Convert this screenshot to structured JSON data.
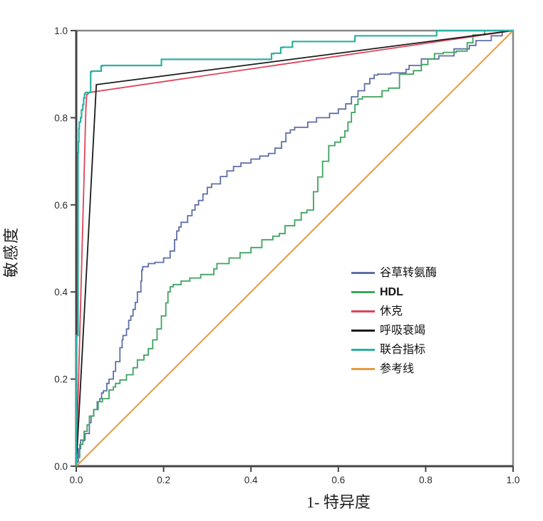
{
  "chart_data": {
    "type": "line",
    "subtype": "roc-curves",
    "title": "",
    "xlabel": "1- 特异度",
    "ylabel": "敏感度",
    "xlim": [
      0,
      1
    ],
    "ylim": [
      0,
      1
    ],
    "grid": false,
    "legend_position": "inside-right",
    "xtick_labels": [
      "0.0",
      "0.2",
      "0.4",
      "0.6",
      "0.8",
      "1.0"
    ],
    "ytick_labels": [
      "0.0",
      "0.2",
      "0.4",
      "0.6",
      "0.8",
      "1.0"
    ],
    "xticks": [
      0.0,
      0.2,
      0.4,
      0.6,
      0.8,
      1.0
    ],
    "yticks": [
      0.0,
      0.2,
      0.4,
      0.6,
      0.8,
      1.0
    ],
    "axis_colors": {
      "frame": "#878787",
      "axis": "#454545",
      "tick_text": "#2b2b2b"
    },
    "series": [
      {
        "id": "ast",
        "name": "谷草转氨酶",
        "color": "#5f6fa6",
        "interp": "step",
        "width": 1.8,
        "points": [
          [
            0,
            0
          ],
          [
            0.005,
            0.01
          ],
          [
            0.01,
            0.04
          ],
          [
            0.02,
            0.06
          ],
          [
            0.03,
            0.075
          ],
          [
            0.034,
            0.1
          ],
          [
            0.04,
            0.115
          ],
          [
            0.048,
            0.13
          ],
          [
            0.054,
            0.148
          ],
          [
            0.058,
            0.155
          ],
          [
            0.062,
            0.168
          ],
          [
            0.07,
            0.173
          ],
          [
            0.075,
            0.19
          ],
          [
            0.085,
            0.2
          ],
          [
            0.09,
            0.218
          ],
          [
            0.1,
            0.24
          ],
          [
            0.105,
            0.272
          ],
          [
            0.107,
            0.29
          ],
          [
            0.115,
            0.3
          ],
          [
            0.12,
            0.315
          ],
          [
            0.125,
            0.335
          ],
          [
            0.13,
            0.345
          ],
          [
            0.135,
            0.36
          ],
          [
            0.14,
            0.376
          ],
          [
            0.148,
            0.4
          ],
          [
            0.15,
            0.425
          ],
          [
            0.152,
            0.45
          ],
          [
            0.165,
            0.458
          ],
          [
            0.18,
            0.465
          ],
          [
            0.2,
            0.468
          ],
          [
            0.215,
            0.478
          ],
          [
            0.225,
            0.494
          ],
          [
            0.23,
            0.52
          ],
          [
            0.235,
            0.54
          ],
          [
            0.24,
            0.549
          ],
          [
            0.255,
            0.56
          ],
          [
            0.265,
            0.575
          ],
          [
            0.272,
            0.588
          ],
          [
            0.28,
            0.6
          ],
          [
            0.29,
            0.61
          ],
          [
            0.3,
            0.625
          ],
          [
            0.31,
            0.64
          ],
          [
            0.33,
            0.648
          ],
          [
            0.345,
            0.665
          ],
          [
            0.36,
            0.678
          ],
          [
            0.377,
            0.688
          ],
          [
            0.4,
            0.696
          ],
          [
            0.42,
            0.705
          ],
          [
            0.44,
            0.712
          ],
          [
            0.455,
            0.718
          ],
          [
            0.47,
            0.73
          ],
          [
            0.48,
            0.745
          ],
          [
            0.49,
            0.765
          ],
          [
            0.5,
            0.772
          ],
          [
            0.53,
            0.778
          ],
          [
            0.55,
            0.79
          ],
          [
            0.58,
            0.8
          ],
          [
            0.6,
            0.81
          ],
          [
            0.617,
            0.82
          ],
          [
            0.63,
            0.832
          ],
          [
            0.645,
            0.848
          ],
          [
            0.66,
            0.862
          ],
          [
            0.672,
            0.878
          ],
          [
            0.682,
            0.89
          ],
          [
            0.69,
            0.898
          ],
          [
            0.72,
            0.9
          ],
          [
            0.755,
            0.903
          ],
          [
            0.762,
            0.911
          ],
          [
            0.79,
            0.92
          ],
          [
            0.83,
            0.935
          ],
          [
            0.865,
            0.942
          ],
          [
            0.9,
            0.958
          ],
          [
            0.915,
            0.966
          ],
          [
            0.95,
            0.977
          ],
          [
            0.975,
            0.988
          ],
          [
            1,
            1
          ]
        ]
      },
      {
        "id": "hdl",
        "name": "HDL",
        "color": "#3ea35f",
        "interp": "step",
        "width": 1.8,
        "points": [
          [
            0,
            0
          ],
          [
            0.008,
            0.02
          ],
          [
            0.015,
            0.05
          ],
          [
            0.018,
            0.058
          ],
          [
            0.025,
            0.08
          ],
          [
            0.03,
            0.095
          ],
          [
            0.04,
            0.115
          ],
          [
            0.05,
            0.13
          ],
          [
            0.06,
            0.148
          ],
          [
            0.075,
            0.155
          ],
          [
            0.085,
            0.175
          ],
          [
            0.09,
            0.182
          ],
          [
            0.1,
            0.19
          ],
          [
            0.115,
            0.198
          ],
          [
            0.13,
            0.21
          ],
          [
            0.14,
            0.226
          ],
          [
            0.155,
            0.244
          ],
          [
            0.165,
            0.255
          ],
          [
            0.175,
            0.27
          ],
          [
            0.185,
            0.29
          ],
          [
            0.195,
            0.315
          ],
          [
            0.205,
            0.345
          ],
          [
            0.21,
            0.375
          ],
          [
            0.215,
            0.4
          ],
          [
            0.222,
            0.412
          ],
          [
            0.24,
            0.417
          ],
          [
            0.26,
            0.425
          ],
          [
            0.285,
            0.432
          ],
          [
            0.315,
            0.44
          ],
          [
            0.322,
            0.453
          ],
          [
            0.35,
            0.465
          ],
          [
            0.375,
            0.478
          ],
          [
            0.4,
            0.49
          ],
          [
            0.425,
            0.502
          ],
          [
            0.45,
            0.52
          ],
          [
            0.465,
            0.528
          ],
          [
            0.478,
            0.534
          ],
          [
            0.5,
            0.552
          ],
          [
            0.515,
            0.565
          ],
          [
            0.528,
            0.582
          ],
          [
            0.543,
            0.588
          ],
          [
            0.553,
            0.63
          ],
          [
            0.564,
            0.664
          ],
          [
            0.578,
            0.7
          ],
          [
            0.592,
            0.736
          ],
          [
            0.605,
            0.744
          ],
          [
            0.615,
            0.755
          ],
          [
            0.622,
            0.77
          ],
          [
            0.63,
            0.79
          ],
          [
            0.638,
            0.812
          ],
          [
            0.645,
            0.83
          ],
          [
            0.655,
            0.843
          ],
          [
            0.7,
            0.848
          ],
          [
            0.715,
            0.862
          ],
          [
            0.74,
            0.868
          ],
          [
            0.772,
            0.9
          ],
          [
            0.79,
            0.908
          ],
          [
            0.805,
            0.922
          ],
          [
            0.82,
            0.935
          ],
          [
            0.84,
            0.947
          ],
          [
            0.87,
            0.95
          ],
          [
            0.895,
            0.953
          ],
          [
            0.908,
            0.972
          ],
          [
            0.935,
            0.99
          ],
          [
            1,
            1
          ]
        ]
      },
      {
        "id": "shock",
        "name": "休克",
        "color": "#e04358",
        "interp": "linear",
        "width": 1.8,
        "points": [
          [
            0,
            0
          ],
          [
            0.022,
            0.82
          ],
          [
            0.024,
            0.852
          ],
          [
            0.03,
            0.858
          ],
          [
            1,
            1
          ]
        ]
      },
      {
        "id": "resp-failure",
        "name": "呼吸衰竭",
        "color": "#1a1a1a",
        "interp": "linear",
        "width": 1.8,
        "points": [
          [
            0,
            0
          ],
          [
            0.046,
            0.876
          ],
          [
            1,
            1
          ]
        ]
      },
      {
        "id": "combined",
        "name": "联合指标",
        "color": "#2cb1a3",
        "interp": "step",
        "width": 2.2,
        "points": [
          [
            0,
            0
          ],
          [
            0.004,
            0.3
          ],
          [
            0.004,
            0.6
          ],
          [
            0.005,
            0.72
          ],
          [
            0.006,
            0.745
          ],
          [
            0.007,
            0.775
          ],
          [
            0.01,
            0.79
          ],
          [
            0.012,
            0.8
          ],
          [
            0.015,
            0.818
          ],
          [
            0.017,
            0.83
          ],
          [
            0.019,
            0.845
          ],
          [
            0.022,
            0.855
          ],
          [
            0.033,
            0.858
          ],
          [
            0.035,
            0.905
          ],
          [
            0.057,
            0.907
          ],
          [
            0.06,
            0.919
          ],
          [
            0.195,
            0.92
          ],
          [
            0.198,
            0.934
          ],
          [
            0.447,
            0.934
          ],
          [
            0.452,
            0.947
          ],
          [
            0.468,
            0.948
          ],
          [
            0.472,
            0.961
          ],
          [
            0.495,
            0.962
          ],
          [
            0.499,
            0.975
          ],
          [
            0.638,
            0.975
          ],
          [
            0.642,
            0.988
          ],
          [
            0.825,
            0.988
          ],
          [
            0.83,
            1.0
          ],
          [
            1,
            1
          ]
        ]
      },
      {
        "id": "reference",
        "name": "参考线",
        "color": "#e79b41",
        "interp": "linear",
        "width": 2,
        "points": [
          [
            0,
            0
          ],
          [
            1,
            1
          ]
        ]
      }
    ]
  }
}
